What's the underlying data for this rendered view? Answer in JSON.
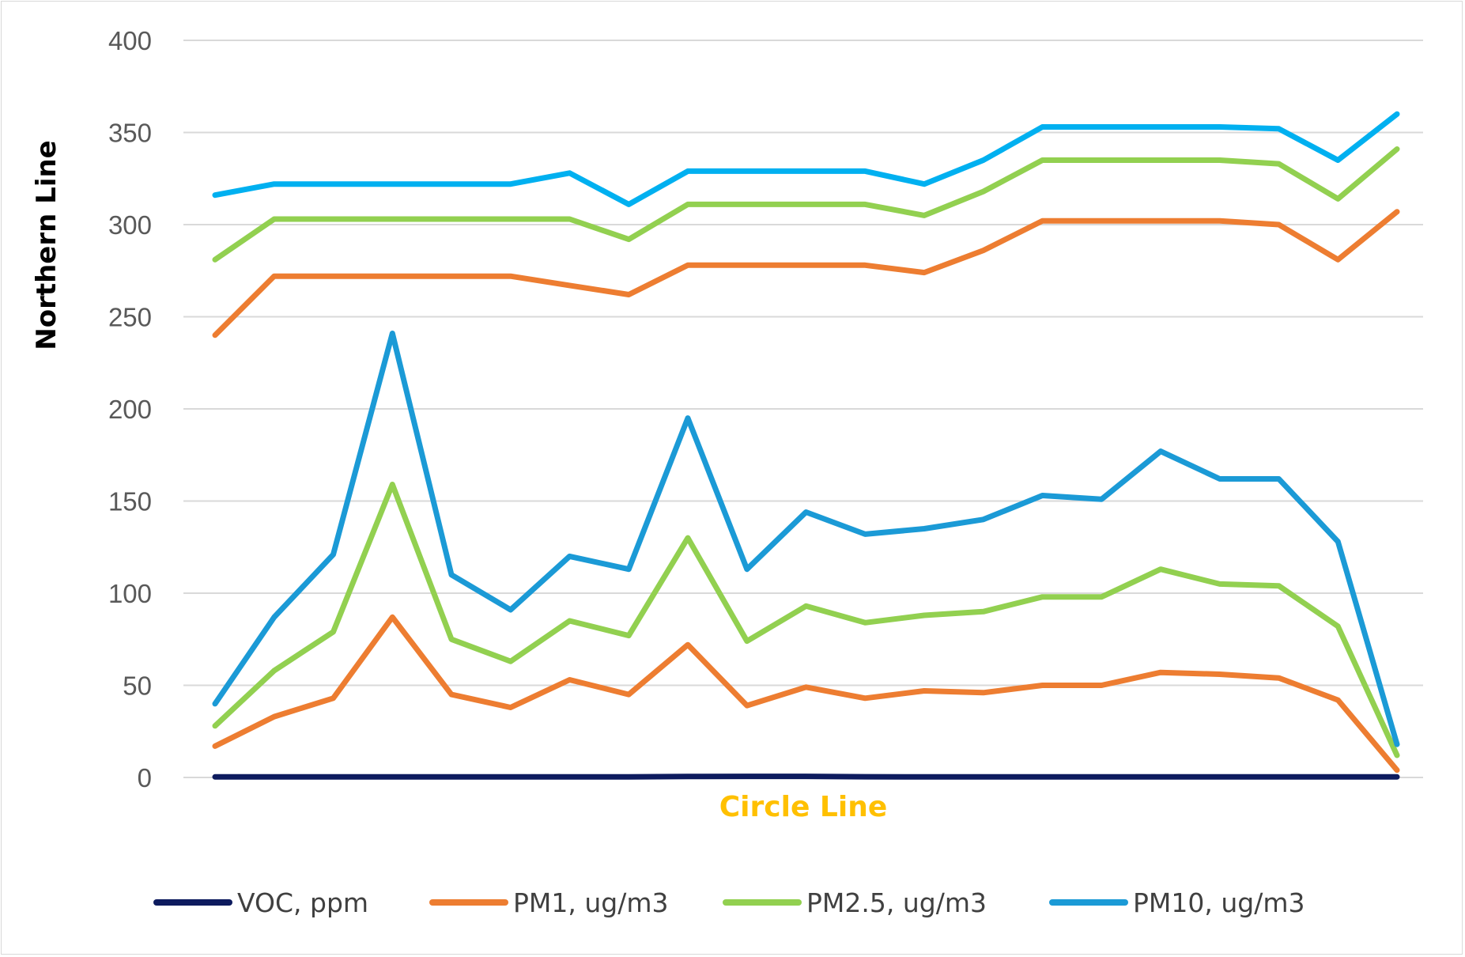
{
  "chart_data": {
    "type": "line",
    "title": "",
    "xlabel": "Circle Line",
    "ylabel": "Northern Line",
    "ylim": [
      0,
      400
    ],
    "yticks": [
      0,
      50,
      100,
      150,
      200,
      250,
      300,
      350,
      400
    ],
    "grid": "horizontal",
    "legend_position": "bottom",
    "colors": {
      "grid": "#d9d9d9",
      "xlabel": "#ffc000",
      "tick": "#595959"
    },
    "x": [
      1,
      2,
      3,
      4,
      5,
      6,
      7,
      8,
      9,
      10,
      11,
      12,
      13,
      14,
      15,
      16,
      17,
      18,
      19,
      20,
      21
    ],
    "series": [
      {
        "name": "VOC, ppm",
        "color": "#0d1b5e",
        "values": [
          0.3,
          0.3,
          0.3,
          0.3,
          0.3,
          0.3,
          0.3,
          0.3,
          0.5,
          0.6,
          0.6,
          0.4,
          0.3,
          0.3,
          0.3,
          0.3,
          0.3,
          0.3,
          0.3,
          0.3,
          0.3
        ]
      },
      {
        "name": "PM1, ug/m3",
        "color": "#ed7d31",
        "values": [
          17,
          33,
          43,
          87,
          45,
          38,
          53,
          45,
          72,
          39,
          49,
          43,
          47,
          46,
          50,
          50,
          57,
          56,
          54,
          42,
          4
        ]
      },
      {
        "name": "PM2.5, ug/m3",
        "color": "#92d050",
        "values": [
          28,
          58,
          79,
          159,
          75,
          63,
          85,
          77,
          130,
          74,
          93,
          84,
          88,
          90,
          98,
          98,
          113,
          105,
          104,
          82,
          12
        ]
      },
      {
        "name": "PM10, ug/m3",
        "color": "#1b9ad6",
        "values": [
          40,
          87,
          121,
          241,
          110,
          91,
          120,
          113,
          195,
          113,
          144,
          132,
          135,
          140,
          153,
          151,
          177,
          162,
          162,
          128,
          18
        ]
      },
      {
        "name": "PM1, ug/m3",
        "color": "#ed7d31",
        "show_in_legend": false,
        "values": [
          240,
          272,
          272,
          272,
          272,
          272,
          267,
          262,
          278,
          278,
          278,
          278,
          274,
          286,
          302,
          302,
          302,
          302,
          300,
          281,
          307
        ]
      },
      {
        "name": "PM2.5, ug/m3",
        "color": "#92d050",
        "show_in_legend": false,
        "values": [
          281,
          303,
          303,
          303,
          303,
          303,
          303,
          292,
          311,
          311,
          311,
          311,
          305,
          318,
          335,
          335,
          335,
          335,
          333,
          314,
          341
        ]
      },
      {
        "name": "PM10, ug/m3",
        "color": "#00b0f0",
        "show_in_legend": false,
        "values": [
          316,
          322,
          322,
          322,
          322,
          322,
          328,
          311,
          329,
          329,
          329,
          329,
          322,
          335,
          353,
          353,
          353,
          353,
          352,
          335,
          360
        ]
      }
    ]
  }
}
